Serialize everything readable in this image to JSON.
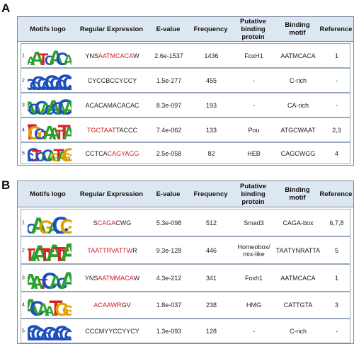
{
  "colors": {
    "header_bg": "#dde7f2",
    "border": "#7a8aa0",
    "highlight": "#d0202a"
  },
  "panels": [
    {
      "label": "A",
      "headers": [
        "Motifs logo",
        "Regular Expression",
        "E-value",
        "Frequency",
        "Putative binding protein",
        "Binding motif",
        "Reference"
      ],
      "rows": [
        {
          "num": "1",
          "logo": "AATCACA",
          "regex_pre": "YNS",
          "regex_red": "AATMCACA",
          "regex_post": "W",
          "evalue": "2.6e-1537",
          "frequency": "1436",
          "protein": "FoxH1",
          "motif": "AATMCACA",
          "reference": "1"
        },
        {
          "num": "2",
          "logo": "CCCCCCCCCC",
          "regex_pre": "CYCCBCCYCCY",
          "regex_red": "",
          "regex_post": "",
          "evalue": "1.5e-277",
          "frequency": "455",
          "protein": "-",
          "motif": "C-rich",
          "reference": "-"
        },
        {
          "num": "3",
          "logo": "ACACACACACA",
          "regex_pre": "ACACAMACACAC",
          "regex_red": "",
          "regex_post": "",
          "evalue": "8.3e-097",
          "frequency": "193",
          "protein": "-",
          "motif": "CA-rich",
          "reference": "-"
        },
        {
          "num": "4",
          "logo": "TGCTAATTA",
          "regex_pre": "",
          "regex_red": "TGCTAAT",
          "regex_post": "TACCC",
          "evalue": "7.4e-062",
          "frequency": "133",
          "protein": "Pou",
          "motif": "ATGCWAAT",
          "reference": "2,3"
        },
        {
          "num": "5",
          "logo": "CCTCACAGTAGG",
          "regex_pre": "CCTCA",
          "regex_red": "CAGYAGG",
          "regex_post": "",
          "evalue": "2.5e-058",
          "frequency": "82",
          "protein": "HEB",
          "motif": "CAGCWGG",
          "reference": "4"
        }
      ]
    },
    {
      "label": "B",
      "headers": [
        "Motifs logo",
        "Regular Expression",
        "E-value",
        "Frequency",
        "Putative binding protein",
        "Binding motif",
        "Reference"
      ],
      "rows": [
        {
          "num": "1",
          "logo": "CAGACG",
          "regex_pre": "S",
          "regex_red": "CAGA",
          "regex_post": "CWG",
          "evalue": "5.3e-098",
          "frequency": "512",
          "protein": "Smad3",
          "motif": "CAGA-box",
          "reference": "6,7,8"
        },
        {
          "num": "2",
          "logo": "TAATTATTA",
          "regex_pre": "",
          "regex_red": "TAATTRVATTW",
          "regex_post": "R",
          "evalue": "9.3e-128",
          "frequency": "446",
          "protein": "Homeobox/ mix-like",
          "motif": "TAATYNRATTA",
          "reference": "5"
        },
        {
          "num": "3",
          "logo": "AATCACA",
          "regex_pre": "YNS",
          "regex_red": "AATMMACA",
          "regex_post": "W",
          "evalue": "4.3e-212",
          "frequency": "341",
          "protein": "Foxh1",
          "motif": "AATMCACA",
          "reference": "1"
        },
        {
          "num": "4",
          "logo": "ACAATGG",
          "regex_pre": "",
          "regex_red": "ACAAWR",
          "regex_post": "GV",
          "evalue": "1.8e-037",
          "frequency": "238",
          "protein": "HMG",
          "motif": "CATTGTA",
          "reference": "3"
        },
        {
          "num": "5",
          "logo": "CCCCCCCCCCC",
          "regex_pre": "CCCMYYCCYYCY",
          "regex_red": "",
          "regex_post": "",
          "evalue": "1.3e-093",
          "frequency": "128",
          "protein": "-",
          "motif": "C-rich",
          "reference": "-"
        }
      ]
    }
  ]
}
